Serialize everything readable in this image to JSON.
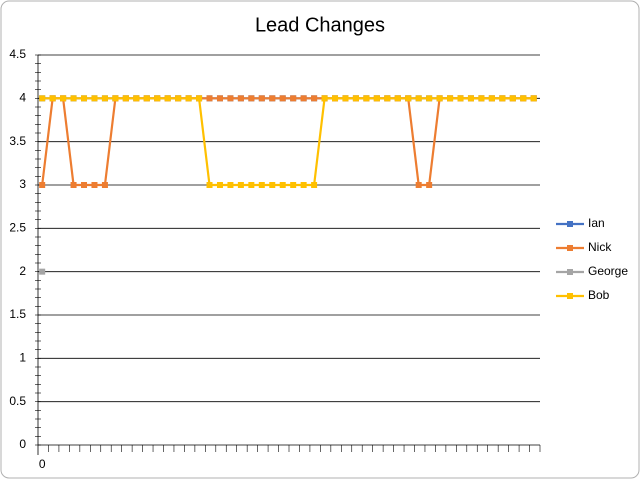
{
  "chart_data": {
    "type": "line",
    "title": "Lead Changes",
    "categories": [
      "0",
      null,
      null,
      null,
      null,
      null,
      null,
      null,
      null,
      null,
      null,
      null,
      null,
      null,
      null,
      null,
      null,
      null,
      null,
      null,
      null,
      null,
      null,
      null,
      null,
      null,
      null,
      null,
      null,
      null,
      null,
      null,
      null,
      null,
      null,
      null,
      null,
      null,
      null,
      null,
      null,
      null,
      null,
      null,
      null,
      null,
      null,
      null
    ],
    "series": [
      {
        "name": "Ian",
        "color": "#4472c4",
        "values": [
          4,
          4,
          4,
          4,
          4,
          4,
          4,
          4,
          4,
          4,
          4,
          4,
          4,
          4,
          4,
          4,
          4,
          4,
          4,
          4,
          4,
          4,
          4,
          4,
          4,
          4,
          4,
          4,
          4,
          4,
          4,
          4,
          4,
          4,
          4,
          4,
          4,
          4,
          4,
          4,
          4,
          4,
          4,
          4,
          4,
          4,
          4,
          4
        ]
      },
      {
        "name": "Nick",
        "color": "#ed7d31",
        "values": [
          3,
          4,
          4,
          3,
          3,
          3,
          3,
          4,
          4,
          4,
          4,
          4,
          4,
          4,
          4,
          4,
          4,
          4,
          4,
          4,
          4,
          4,
          4,
          4,
          4,
          4,
          4,
          4,
          4,
          4,
          4,
          4,
          4,
          4,
          4,
          4,
          3,
          3,
          4,
          4,
          4,
          4,
          4,
          4,
          4,
          4,
          4,
          4
        ]
      },
      {
        "name": "George",
        "color": "#a5a5a5",
        "values": [
          2,
          null,
          null,
          null,
          null,
          null,
          null,
          null,
          null,
          null,
          null,
          null,
          null,
          null,
          null,
          null,
          null,
          null,
          null,
          null,
          null,
          null,
          null,
          null,
          null,
          null,
          null,
          null,
          null,
          null,
          null,
          null,
          null,
          null,
          null,
          null,
          null,
          null,
          null,
          null,
          null,
          null,
          null,
          null,
          null,
          null,
          null,
          null
        ]
      },
      {
        "name": "Bob",
        "color": "#ffc000",
        "values": [
          4,
          4,
          4,
          4,
          4,
          4,
          4,
          4,
          4,
          4,
          4,
          4,
          4,
          4,
          4,
          4,
          3,
          3,
          3,
          3,
          3,
          3,
          3,
          3,
          3,
          3,
          3,
          4,
          4,
          4,
          4,
          4,
          4,
          4,
          4,
          4,
          4,
          4,
          4,
          4,
          4,
          4,
          4,
          4,
          4,
          4,
          4,
          4
        ]
      }
    ],
    "ylim": [
      0,
      4.5
    ],
    "yticks": [
      0,
      0.5,
      1,
      1.5,
      2,
      2.5,
      3,
      3.5,
      4,
      4.5
    ],
    "grid": true,
    "legend": "right"
  }
}
